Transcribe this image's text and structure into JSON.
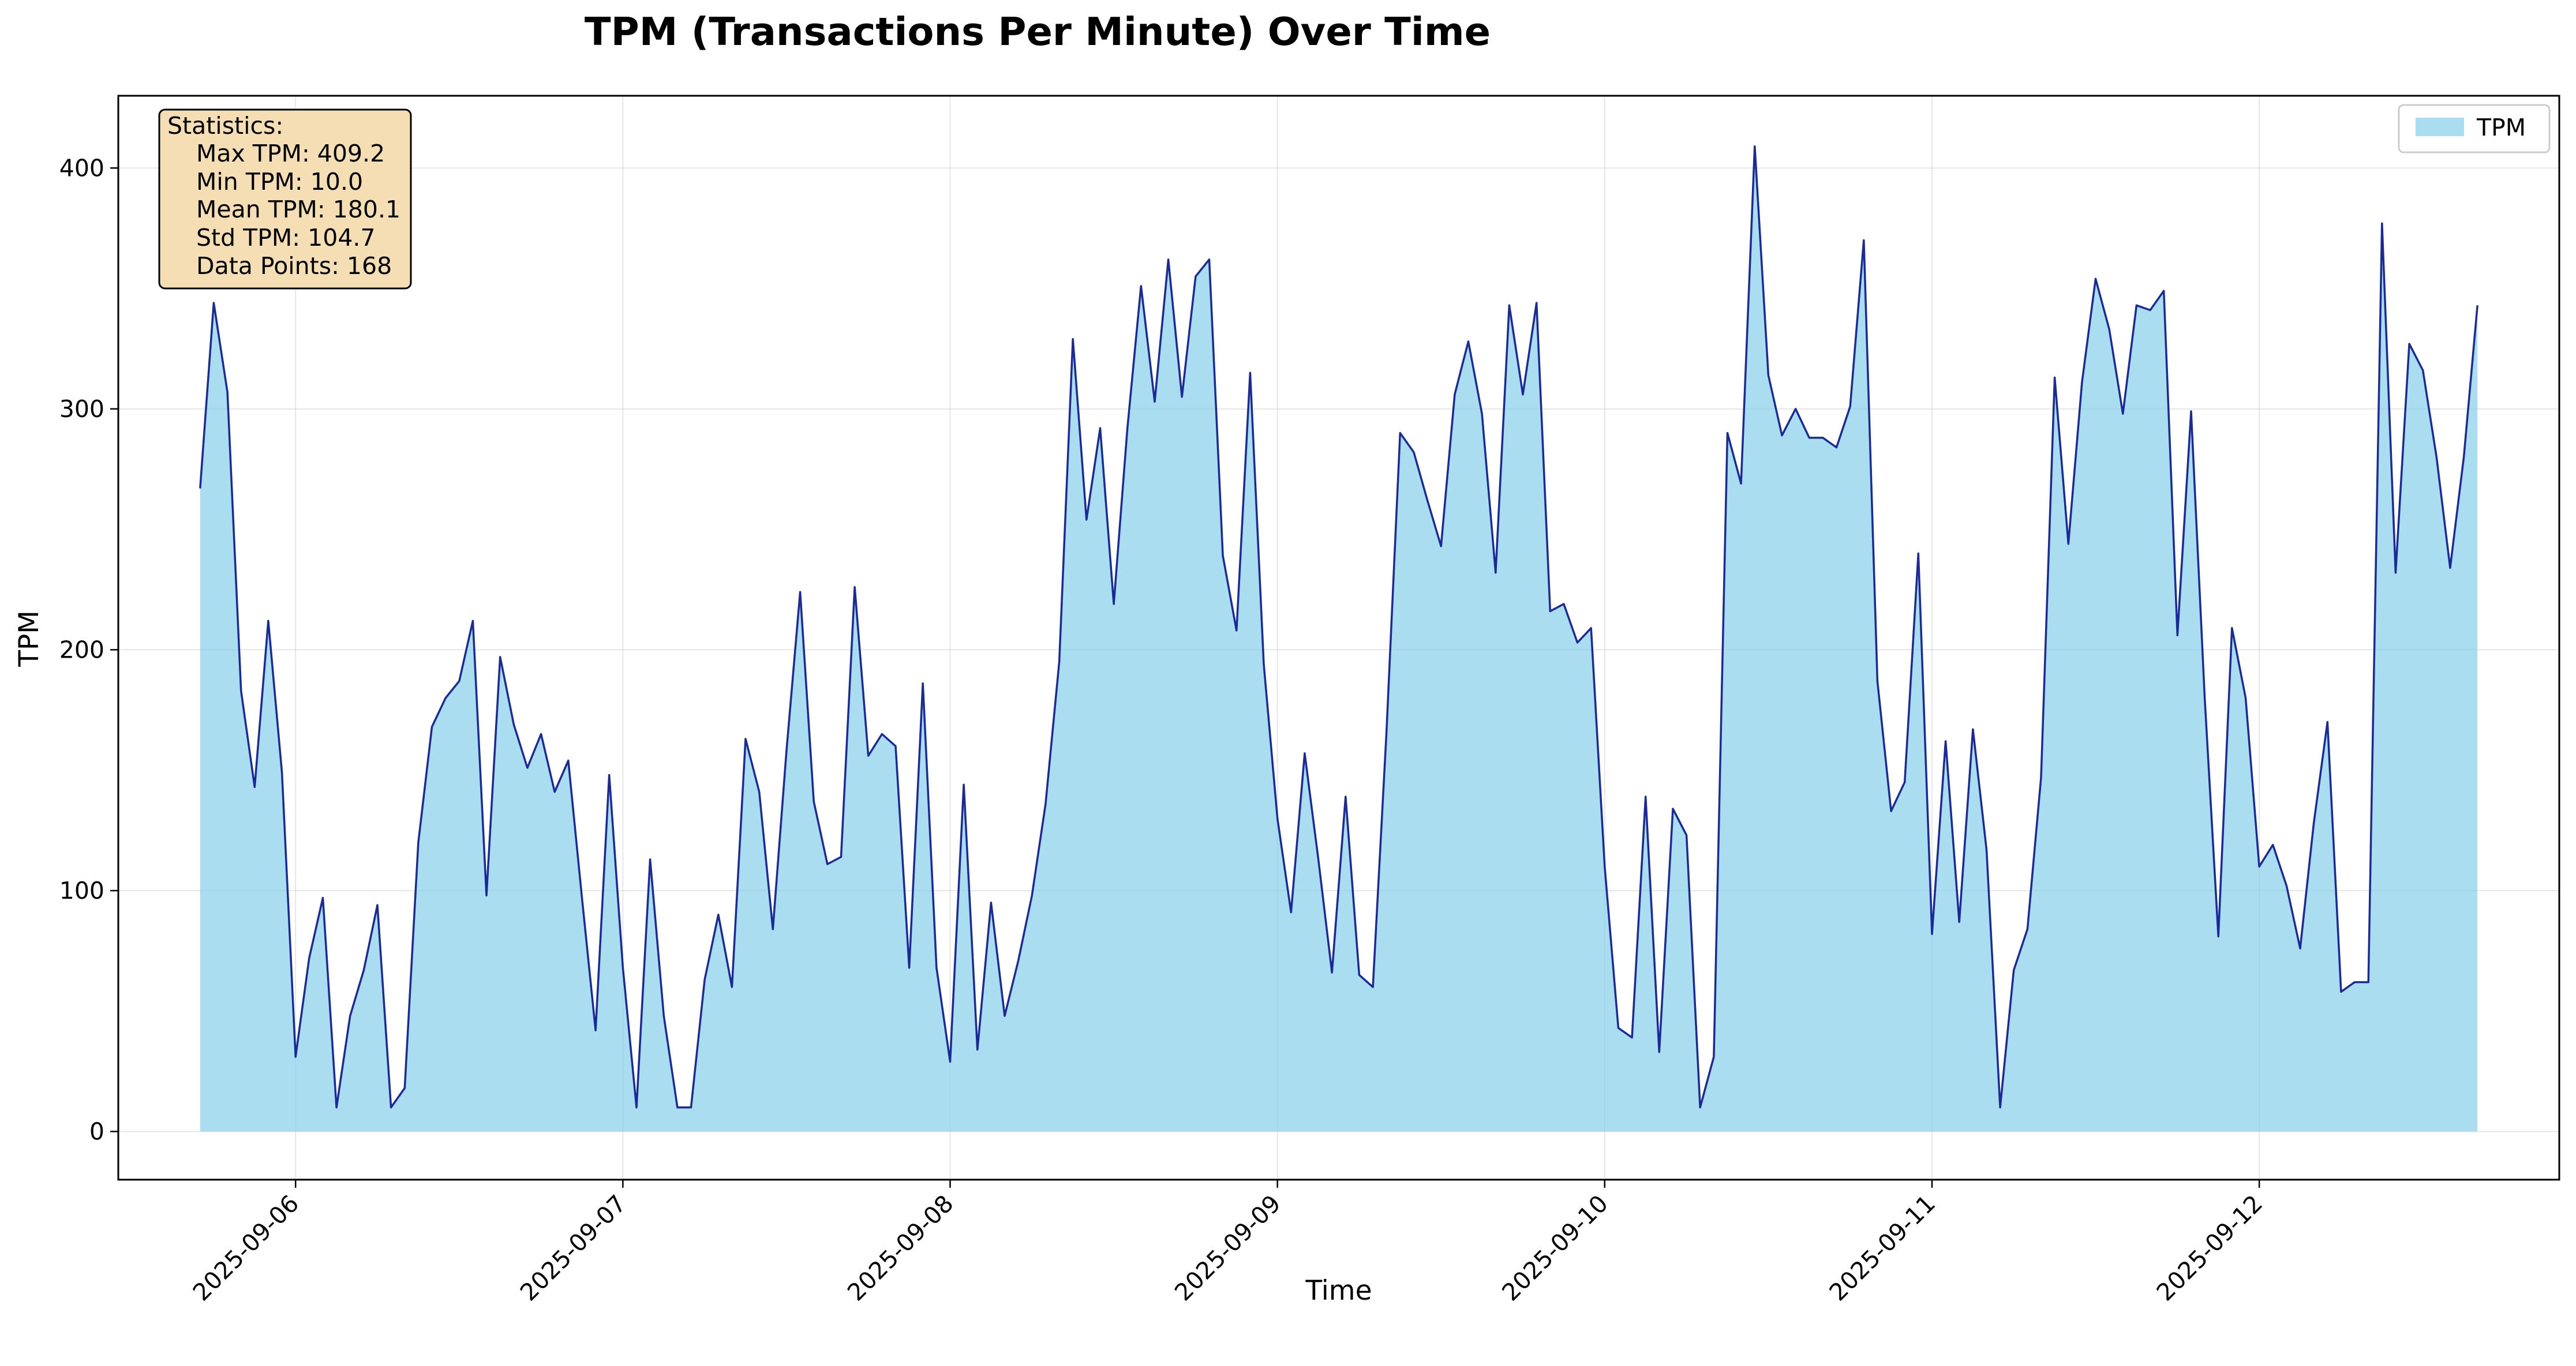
{
  "chart_data": {
    "type": "area",
    "title": "TPM (Transactions Per Minute) Over Time",
    "xlabel": "Time",
    "ylabel": "TPM",
    "x_start": "2025-09-05 17:00",
    "x_step_hours": 1,
    "xlim": [
      "2025-09-05 11:00",
      "2025-09-12 22:00"
    ],
    "ylim": [
      -20,
      430
    ],
    "x_ticks": [
      "2025-09-06",
      "2025-09-07",
      "2025-09-08",
      "2025-09-09",
      "2025-09-10",
      "2025-09-11",
      "2025-09-12"
    ],
    "y_ticks": [
      0,
      100,
      200,
      300,
      400
    ],
    "grid": true,
    "legend_position": "top-right",
    "series": [
      {
        "name": "TPM",
        "fill_color": "#87CEEB",
        "line_color": "#1a2a9a",
        "values": [
          267,
          344,
          307,
          183,
          143,
          212,
          149,
          31,
          72,
          97,
          10,
          48,
          67,
          94,
          10,
          18,
          120,
          168,
          180,
          187,
          212,
          98,
          197,
          169,
          151,
          165,
          141,
          154,
          97,
          42,
          148,
          68,
          10,
          113,
          48,
          10,
          10,
          63,
          90,
          60,
          163,
          141,
          84,
          158,
          224,
          137,
          111,
          114,
          226,
          156,
          165,
          160,
          68,
          186,
          68,
          29,
          144,
          34,
          95,
          48,
          71,
          98,
          136,
          195,
          329,
          254,
          292,
          219,
          292,
          351,
          303,
          362,
          305,
          355,
          362,
          239,
          208,
          315,
          194,
          130,
          91,
          157,
          113,
          66,
          139,
          65,
          60,
          166,
          290,
          282,
          262,
          243,
          306,
          328,
          298,
          232,
          343,
          306,
          344,
          216,
          219,
          203,
          209,
          110,
          43,
          39,
          139,
          33,
          134,
          123,
          10,
          31,
          290,
          269,
          409,
          314,
          289,
          300,
          288,
          288,
          284,
          301,
          370,
          187,
          133,
          145,
          240,
          82,
          162,
          87,
          167,
          117,
          10,
          67,
          84,
          147,
          313,
          244,
          311,
          354,
          333,
          298,
          343,
          341,
          349,
          206,
          299,
          180,
          81,
          209,
          180,
          110,
          119,
          102,
          76,
          128,
          170,
          58,
          62,
          62,
          377,
          232,
          327,
          316,
          280,
          234,
          280,
          343
        ]
      }
    ],
    "stats_box": {
      "lines": [
        "Statistics:",
        "Max TPM: 409.2",
        "Min TPM: 10.0",
        "Mean TPM: 180.1",
        "Std TPM: 104.7",
        "Data Points: 168"
      ]
    }
  }
}
